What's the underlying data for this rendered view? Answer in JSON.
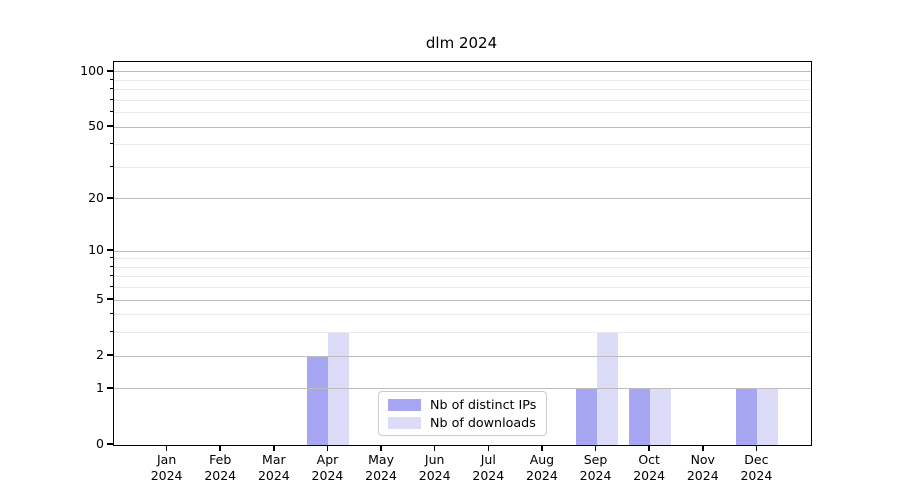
{
  "chart_data": {
    "type": "bar",
    "title": "dlm 2024",
    "xlabel": "",
    "ylabel": "",
    "yscale": "log1p",
    "grid": true,
    "legend_position": "lower center",
    "categories": [
      "Jan 2024",
      "Feb 2024",
      "Mar 2024",
      "Apr 2024",
      "May 2024",
      "Jun 2024",
      "Jul 2024",
      "Aug 2024",
      "Sep 2024",
      "Oct 2024",
      "Nov 2024",
      "Dec 2024"
    ],
    "series": [
      {
        "name": "Nb of distinct IPs",
        "color": "#a6a6f2",
        "values": [
          0,
          0,
          0,
          2,
          0,
          0,
          0,
          0,
          1,
          1,
          0,
          1
        ]
      },
      {
        "name": "Nb of downloads",
        "color": "#dcdcf8",
        "values": [
          0,
          0,
          0,
          3,
          0,
          0,
          0,
          0,
          3,
          1,
          0,
          1
        ]
      }
    ],
    "yticks": [
      0,
      1,
      2,
      5,
      10,
      20,
      50,
      100
    ],
    "minor_yticks": [
      3,
      4,
      6,
      7,
      8,
      9,
      30,
      40,
      60,
      70,
      80,
      90
    ],
    "ylim": [
      0,
      113
    ],
    "colors": {
      "axis": "#000000",
      "grid_major": "#bdbdbd",
      "grid_minor": "#e9e9e9",
      "background": "#ffffff"
    }
  }
}
